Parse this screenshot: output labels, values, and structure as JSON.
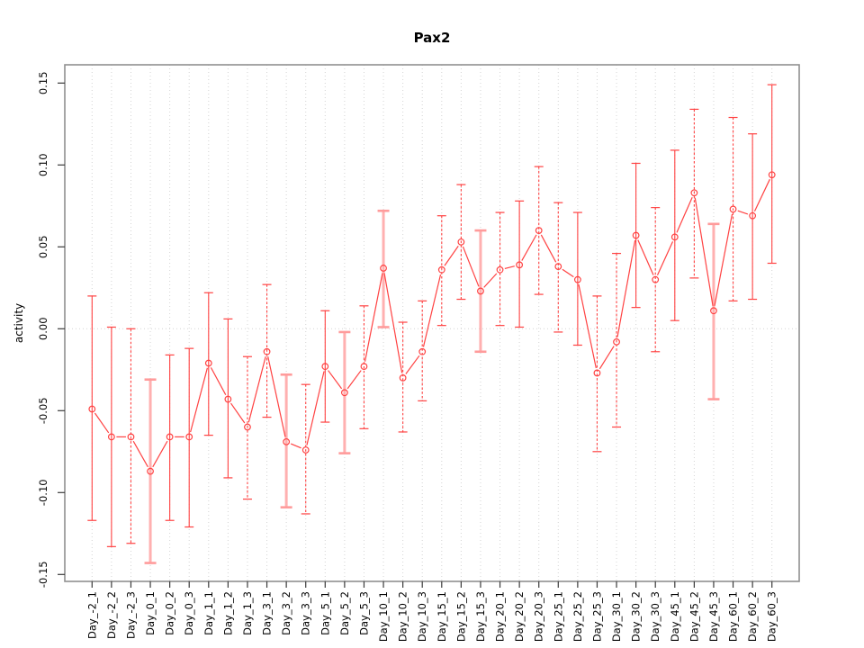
{
  "chart_data": {
    "type": "line",
    "title": "Pax2",
    "ylabel": "activity",
    "xlabel": "",
    "ylim": [
      -0.15,
      0.15
    ],
    "yticks": [
      -0.15,
      -0.1,
      -0.05,
      0.0,
      0.05,
      0.1,
      0.15
    ],
    "ytick_labels": [
      "-0.15",
      "-0.10",
      "-0.05",
      "0.00",
      "0.05",
      "0.10",
      "0.15"
    ],
    "grid": "vertical dotted line at every category; horizontal dotted line at y=0; full box frame",
    "legend": "none",
    "categories": [
      "Day_-2_1",
      "Day_-2_2",
      "Day_-2_3",
      "Day_0_1",
      "Day_0_2",
      "Day_0_3",
      "Day_1_1",
      "Day_1_2",
      "Day_1_3",
      "Day_3_1",
      "Day_3_2",
      "Day_3_3",
      "Day_5_1",
      "Day_5_2",
      "Day_5_3",
      "Day_10_1",
      "Day_10_2",
      "Day_10_3",
      "Day_15_1",
      "Day_15_2",
      "Day_15_3",
      "Day_20_1",
      "Day_20_2",
      "Day_20_3",
      "Day_25_1",
      "Day_25_2",
      "Day_25_3",
      "Day_30_1",
      "Day_30_2",
      "Day_30_3",
      "Day_45_1",
      "Day_45_2",
      "Day_45_3",
      "Day_60_1",
      "Day_60_2",
      "Day_60_3"
    ],
    "series": [
      {
        "name": "activity (mean with error bars, open-circle markers joined by line segments)",
        "values": [
          -0.049,
          -0.066,
          -0.066,
          -0.087,
          -0.066,
          -0.066,
          -0.021,
          -0.043,
          -0.06,
          -0.014,
          -0.069,
          -0.074,
          -0.023,
          -0.039,
          -0.023,
          0.037,
          -0.03,
          -0.014,
          0.036,
          0.053,
          0.023,
          0.036,
          0.039,
          0.06,
          0.038,
          0.03,
          -0.027,
          -0.008,
          0.057,
          0.03,
          0.056,
          0.083,
          0.011,
          0.073,
          0.069,
          0.094
        ],
        "err_low": [
          -0.117,
          -0.133,
          -0.131,
          -0.143,
          -0.117,
          -0.121,
          -0.065,
          -0.091,
          -0.104,
          -0.054,
          -0.109,
          -0.113,
          -0.057,
          -0.076,
          -0.061,
          0.001,
          -0.063,
          -0.044,
          0.002,
          0.018,
          -0.014,
          0.002,
          0.001,
          0.021,
          -0.002,
          -0.01,
          -0.075,
          -0.06,
          0.013,
          -0.014,
          0.005,
          0.031,
          -0.043,
          0.017,
          0.018,
          0.04
        ],
        "err_high": [
          0.02,
          0.001,
          0.0,
          -0.031,
          -0.016,
          -0.012,
          0.022,
          0.006,
          -0.017,
          0.027,
          -0.028,
          -0.034,
          0.011,
          -0.002,
          0.014,
          0.072,
          0.004,
          0.017,
          0.069,
          0.088,
          0.06,
          0.071,
          0.078,
          0.099,
          0.077,
          0.071,
          0.02,
          0.046,
          0.101,
          0.074,
          0.109,
          0.134,
          0.064,
          0.129,
          0.119,
          0.149
        ],
        "bar_style": [
          "solid",
          "solid",
          "dashed",
          "pink",
          "solid",
          "solid",
          "solid",
          "solid",
          "dashed",
          "dashed",
          "pink",
          "dashed",
          "solid",
          "pink",
          "dashed",
          "pink",
          "dashed",
          "dashed",
          "dashed",
          "dashed",
          "pink",
          "dashed",
          "solid",
          "dashed",
          "dashed",
          "solid",
          "dashed",
          "dashed",
          "solid",
          "dashed",
          "solid",
          "dashed",
          "pink",
          "dashed",
          "solid",
          "solid"
        ]
      }
    ],
    "colors": {
      "series_red": "#ff4242",
      "pink_bar": "#ffb0b0",
      "pink_cap": "#ff9b9b",
      "grid": "#d4d4d4",
      "frame": "#909090",
      "tick": "#3a3a3a",
      "text": "#000000",
      "background": "#ffffff"
    }
  }
}
